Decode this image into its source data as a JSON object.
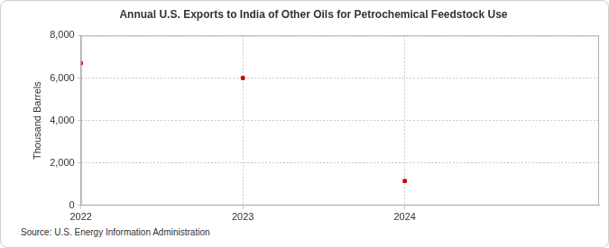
{
  "chart_data": {
    "type": "scatter",
    "title": "Annual U.S. Exports to India of Other Oils for Petrochemical Feedstock Use",
    "ylabel": "Thousand Barrels",
    "source": "Source: U.S. Energy Information Administration",
    "x": [
      2022,
      2023,
      2024
    ],
    "values": [
      6700,
      6000,
      1150
    ],
    "color": "#cc0000",
    "marker": "square",
    "xlim": [
      2022,
      2025.2
    ],
    "xticks": [
      2022,
      2023,
      2024
    ],
    "ylim": [
      0,
      8000
    ],
    "yticks": [
      0,
      {
        "value": 2000,
        "label": "2,000"
      },
      {
        "value": 4000,
        "label": "4,000"
      },
      {
        "value": 6000,
        "label": "6,000"
      },
      {
        "value": 8000,
        "label": "8,000"
      }
    ],
    "grid": true
  }
}
